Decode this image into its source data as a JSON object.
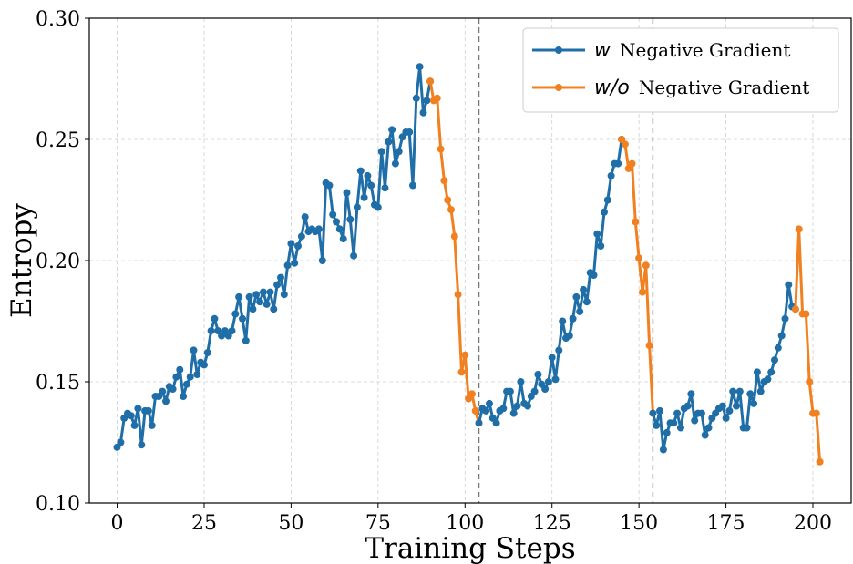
{
  "chart_data": {
    "type": "line",
    "xlabel": "Training Steps",
    "ylabel": "Entropy",
    "xlim": [
      -8,
      211
    ],
    "ylim": [
      0.1,
      0.3
    ],
    "xticks": [
      0,
      25,
      50,
      75,
      100,
      125,
      150,
      175,
      200
    ],
    "xtick_labels": [
      "0",
      "25",
      "50",
      "75",
      "100",
      "125",
      "150",
      "175",
      "200"
    ],
    "yticks": [
      0.1,
      0.15,
      0.2,
      0.25,
      0.3
    ],
    "ytick_labels": [
      "0.10",
      "0.15",
      "0.20",
      "0.25",
      "0.30"
    ],
    "grid": true,
    "legend_position": "top-right",
    "vlines": [
      104,
      154
    ],
    "series": [
      {
        "name": "Negative Gradient",
        "legend_prefix": "w",
        "color": "#1f6ea8",
        "x": [
          0,
          1,
          2,
          3,
          4,
          5,
          6,
          7,
          8,
          9,
          10,
          11,
          12,
          13,
          14,
          15,
          16,
          17,
          18,
          19,
          20,
          21,
          22,
          23,
          24,
          25,
          26,
          27,
          28,
          29,
          30,
          31,
          32,
          33,
          34,
          35,
          36,
          37,
          38,
          39,
          40,
          41,
          42,
          43,
          44,
          45,
          46,
          47,
          48,
          49,
          50,
          51,
          52,
          53,
          54,
          55,
          56,
          57,
          58,
          59,
          60,
          61,
          62,
          63,
          64,
          65,
          66,
          67,
          68,
          69,
          70,
          71,
          72,
          73,
          74,
          75,
          76,
          77,
          78,
          79,
          80,
          81,
          82,
          83,
          84,
          85,
          86,
          87,
          88,
          89,
          90
        ],
        "values": [
          0.123,
          0.125,
          0.135,
          0.137,
          0.136,
          0.132,
          0.139,
          0.124,
          0.138,
          0.138,
          0.132,
          0.144,
          0.144,
          0.146,
          0.142,
          0.148,
          0.147,
          0.152,
          0.155,
          0.144,
          0.149,
          0.152,
          0.163,
          0.153,
          0.158,
          0.157,
          0.162,
          0.171,
          0.176,
          0.171,
          0.169,
          0.171,
          0.169,
          0.171,
          0.178,
          0.185,
          0.176,
          0.167,
          0.185,
          0.18,
          0.186,
          0.183,
          0.187,
          0.182,
          0.187,
          0.18,
          0.19,
          0.193,
          0.186,
          0.198,
          0.207,
          0.199,
          0.206,
          0.21,
          0.218,
          0.212,
          0.213,
          0.212,
          0.213,
          0.2,
          0.232,
          0.231,
          0.219,
          0.216,
          0.213,
          0.209,
          0.228,
          0.217,
          0.202,
          0.222,
          0.237,
          0.226,
          0.235,
          0.231,
          0.223,
          0.222,
          0.245,
          0.23,
          0.249,
          0.254,
          0.24,
          0.245,
          0.251,
          0.253,
          0.253,
          0.231,
          0.267,
          0.28,
          0.261,
          0.266,
          0.274
        ]
      },
      {
        "name": "Negative Gradient",
        "legend_prefix": "w/o",
        "color": "#f08020",
        "x": [
          90,
          91,
          92,
          93,
          94,
          95,
          96,
          97,
          98,
          99,
          100,
          101,
          102,
          103,
          104
        ],
        "values": [
          0.274,
          0.266,
          0.267,
          0.246,
          0.233,
          0.225,
          0.221,
          0.21,
          0.186,
          0.154,
          0.161,
          0.143,
          0.145,
          0.138,
          0.133
        ]
      },
      {
        "name": "Negative Gradient",
        "legend_prefix": "w",
        "color": "#1f6ea8",
        "x": [
          104,
          105,
          106,
          107,
          108,
          109,
          110,
          111,
          112,
          113,
          114,
          115,
          116,
          117,
          118,
          119,
          120,
          121,
          122,
          123,
          124,
          125,
          126,
          127,
          128,
          129,
          130,
          131,
          132,
          133,
          134,
          135,
          136,
          137,
          138,
          139,
          140,
          141,
          142,
          143,
          144,
          145
        ],
        "values": [
          0.133,
          0.139,
          0.138,
          0.141,
          0.135,
          0.133,
          0.138,
          0.139,
          0.146,
          0.146,
          0.137,
          0.14,
          0.15,
          0.141,
          0.14,
          0.144,
          0.146,
          0.153,
          0.149,
          0.147,
          0.15,
          0.16,
          0.151,
          0.163,
          0.175,
          0.168,
          0.169,
          0.176,
          0.185,
          0.179,
          0.188,
          0.183,
          0.195,
          0.194,
          0.211,
          0.206,
          0.22,
          0.225,
          0.235,
          0.24,
          0.24,
          0.25
        ]
      },
      {
        "name": "Negative Gradient",
        "legend_prefix": "w/o",
        "color": "#f08020",
        "x": [
          145,
          146,
          147,
          148,
          149,
          150,
          151,
          152,
          153,
          154
        ],
        "values": [
          0.25,
          0.248,
          0.238,
          0.24,
          0.216,
          0.201,
          0.187,
          0.198,
          0.165,
          0.137
        ]
      },
      {
        "name": "Negative Gradient",
        "legend_prefix": "w",
        "color": "#1f6ea8",
        "x": [
          154,
          155,
          156,
          157,
          158,
          159,
          160,
          161,
          162,
          163,
          164,
          165,
          166,
          167,
          168,
          169,
          170,
          171,
          172,
          173,
          174,
          175,
          176,
          177,
          178,
          179,
          180,
          181,
          182,
          183,
          184,
          185,
          186,
          187,
          188,
          189,
          190,
          191,
          192,
          193,
          194,
          195
        ],
        "values": [
          0.137,
          0.132,
          0.138,
          0.122,
          0.129,
          0.133,
          0.133,
          0.137,
          0.131,
          0.139,
          0.14,
          0.145,
          0.134,
          0.137,
          0.137,
          0.128,
          0.131,
          0.135,
          0.137,
          0.139,
          0.14,
          0.135,
          0.138,
          0.146,
          0.14,
          0.146,
          0.131,
          0.131,
          0.145,
          0.141,
          0.154,
          0.146,
          0.15,
          0.151,
          0.154,
          0.159,
          0.164,
          0.169,
          0.176,
          0.19,
          0.181,
          0.18
        ]
      },
      {
        "name": "Negative Gradient",
        "legend_prefix": "w/o",
        "color": "#f08020",
        "x": [
          195,
          196,
          197,
          198,
          199,
          200,
          201,
          202
        ],
        "values": [
          0.18,
          0.213,
          0.178,
          0.178,
          0.15,
          0.137,
          0.137,
          0.117
        ]
      }
    ],
    "legend": [
      {
        "prefix": "w",
        "label": "Negative Gradient",
        "color": "#1f6ea8"
      },
      {
        "prefix": "w/o",
        "label": "Negative Gradient",
        "color": "#f08020"
      }
    ]
  }
}
